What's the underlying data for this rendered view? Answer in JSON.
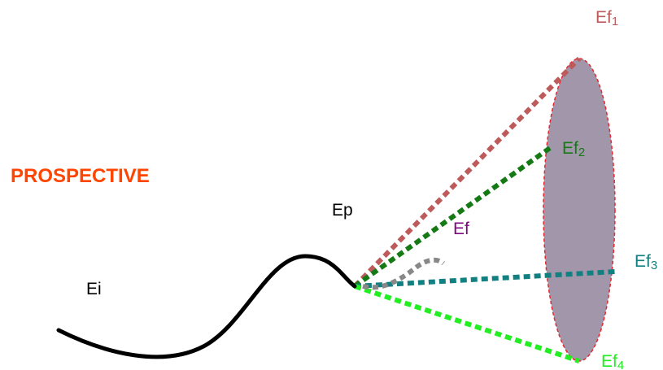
{
  "title": "PROSPECTIVE",
  "colors": {
    "title": "#ff4500",
    "trajectory": "#000000",
    "ellipse_fill": "#a296aa",
    "ellipse_stroke": "#e8262e",
    "ef1": "#bd5b5b",
    "ef2": "#157a15",
    "ef3": "#128080",
    "ef4": "#22ee22",
    "ef": "#7d0a7d",
    "ef_path": "#888888"
  },
  "labels": {
    "ei": "Ei",
    "ep": "Ep",
    "ef": "Ef",
    "ef1": {
      "base": "Ef",
      "sub": "1"
    },
    "ef2": {
      "base": "Ef",
      "sub": "2"
    },
    "ef3": {
      "base": "Ef",
      "sub": "3"
    },
    "ef4": {
      "base": "Ef",
      "sub": "4"
    }
  }
}
